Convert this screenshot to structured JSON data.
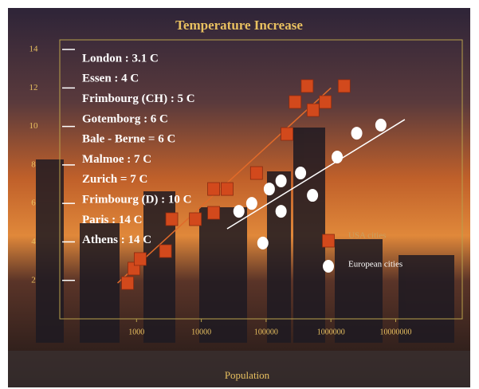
{
  "chart_data": {
    "type": "scatter",
    "title": "Temperature Increase",
    "x_label": "Population",
    "log_x": true,
    "xlim": [
      100,
      100000000
    ],
    "xticks": [
      1000,
      10000,
      100000,
      1000000,
      10000000
    ],
    "ylim": [
      0,
      14.5
    ],
    "yticks": [
      2,
      4,
      6,
      8,
      10,
      12,
      14
    ],
    "annotations": [
      "London : 3.1 C",
      "Essen : 4 C",
      "Frimbourg (CH) : 5 C",
      "Gotemborg : 6 C",
      "Bale - Berne = 6 C",
      "Malmoe : 7 C",
      "Zurich = 7 C",
      "Frimbourg (D) : 10 C",
      "Paris : 14 C",
      "Athens : 14 C"
    ],
    "series": [
      {
        "name": "USA cities",
        "color": "#d2491c",
        "marker": "square",
        "x": [
          727,
          910,
          1140,
          2800,
          3500,
          8100,
          15500,
          15500,
          25000,
          71000,
          210000,
          280000,
          430000,
          530000,
          820000,
          1600000
        ],
        "values": [
          1.86,
          2.61,
          3.11,
          3.52,
          5.18,
          5.18,
          6.75,
          5.51,
          6.75,
          7.58,
          9.61,
          11.27,
          12.1,
          10.85,
          11.27,
          12.1
        ],
        "trend": {
          "x": [
            510,
            1000000
          ],
          "values": [
            1.86,
            12.0
          ]
        }
      },
      {
        "name": "European cities",
        "color": "#ffffff",
        "marker": "circle",
        "x": [
          38000,
          60000,
          89000,
          112000,
          170000,
          170000,
          340000,
          520000,
          1250000,
          2500000,
          5900000
        ],
        "values": [
          5.59,
          6.0,
          3.94,
          6.75,
          7.17,
          5.59,
          7.58,
          6.42,
          8.41,
          9.65,
          10.07
        ],
        "trend": {
          "x": [
            25000,
            13800000
          ],
          "values": [
            4.68,
            10.36
          ]
        }
      }
    ]
  }
}
